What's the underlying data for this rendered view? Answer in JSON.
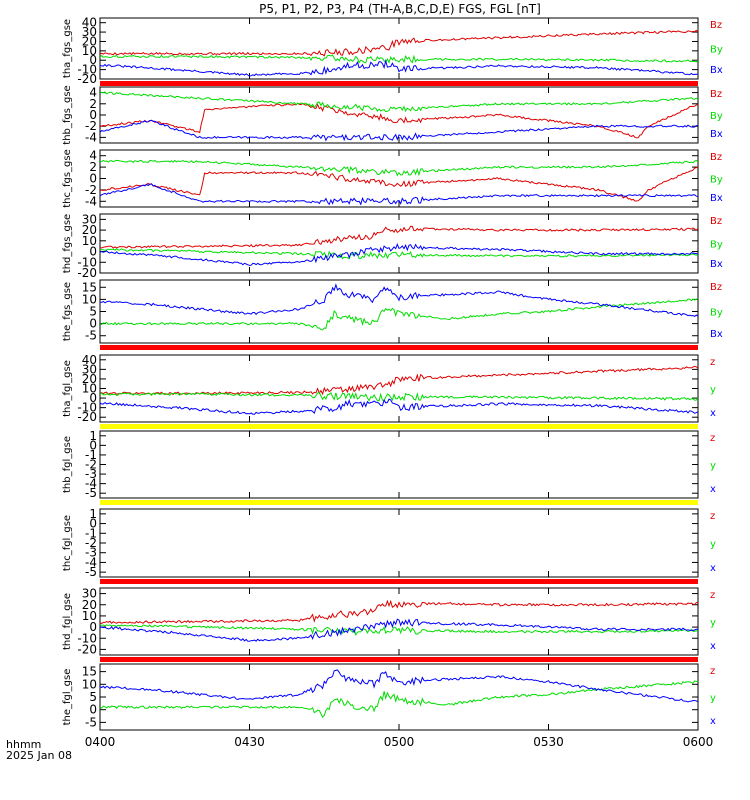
{
  "figure": {
    "title": "P5, P1, P2, P3, P4 (TH-A,B,C,D,E) FGS, FGL [nT]",
    "x_axis_label": "hhmm",
    "date_label": "2025 Jan 08"
  },
  "colors": {
    "x": "#0000ff",
    "y": "#00dd00",
    "z": "#dd0000",
    "red_bar": "#ff0000",
    "yellow_bar": "#ffff00"
  },
  "chart_data": [
    {
      "type": "line",
      "ylabel": "tha_fgs_gse",
      "ylim": [
        -20,
        45
      ],
      "yticks": [
        40,
        30,
        20,
        10,
        0,
        -10,
        -20
      ],
      "xlim": [
        "04:00",
        "06:00"
      ],
      "xticks": [
        "0400",
        "0430",
        "0500",
        "0530",
        "0600"
      ],
      "series": [
        {
          "name": "Bz",
          "component": "z",
          "x": [
            "04:00",
            "04:20",
            "04:40",
            "04:50",
            "04:55",
            "04:58",
            "04:59",
            "05:00",
            "05:20",
            "05:40",
            "06:00"
          ],
          "values": [
            7,
            7,
            7,
            9,
            12,
            14,
            18,
            20,
            24,
            28,
            31
          ]
        },
        {
          "name": "By",
          "component": "y",
          "x": [
            "04:00",
            "04:20",
            "04:40",
            "04:48",
            "04:55",
            "05:00",
            "05:20",
            "05:40",
            "06:00"
          ],
          "values": [
            4,
            4,
            3,
            2,
            0,
            1,
            1,
            0,
            -1
          ]
        },
        {
          "name": "Bx",
          "component": "x",
          "x": [
            "04:00",
            "04:15",
            "04:30",
            "04:40",
            "04:47",
            "04:50",
            "04:55",
            "04:58",
            "05:00",
            "05:20",
            "05:40",
            "06:00"
          ],
          "values": [
            -5,
            -10,
            -16,
            -14,
            -10,
            -6,
            -5,
            -4,
            -10,
            -6,
            -8,
            -15
          ]
        }
      ],
      "bar_below": "red"
    },
    {
      "type": "line",
      "ylabel": "thb_fgs_gse",
      "ylim": [
        -5,
        5
      ],
      "yticks": [
        4,
        2,
        0,
        -2,
        -4
      ],
      "xlim": [
        "04:00",
        "06:00"
      ],
      "xticks": [
        "0400",
        "0430",
        "0500",
        "0530",
        "0600"
      ],
      "series": [
        {
          "name": "Bz",
          "component": "z",
          "x": [
            "04:00",
            "04:10",
            "04:20",
            "04:21",
            "04:40",
            "05:00",
            "05:20",
            "05:40",
            "05:48",
            "05:50",
            "06:00"
          ],
          "values": [
            -2,
            -1,
            -3,
            1,
            2,
            -1,
            0,
            -2,
            -4,
            -2,
            2
          ]
        },
        {
          "name": "By",
          "component": "y",
          "x": [
            "04:00",
            "04:20",
            "04:40",
            "05:00",
            "05:20",
            "05:40",
            "06:00"
          ],
          "values": [
            4,
            3,
            2,
            1,
            2,
            2,
            3
          ]
        },
        {
          "name": "Bx",
          "component": "x",
          "x": [
            "04:00",
            "04:10",
            "04:20",
            "04:40",
            "05:00",
            "05:20",
            "05:40",
            "06:00"
          ],
          "values": [
            -3,
            -1,
            -4,
            -4,
            -4,
            -3,
            -2,
            -2
          ]
        }
      ]
    },
    {
      "type": "line",
      "ylabel": "thc_fgs_gse",
      "ylim": [
        -5,
        5
      ],
      "yticks": [
        4,
        2,
        0,
        -2,
        -4
      ],
      "xlim": [
        "04:00",
        "06:00"
      ],
      "xticks": [
        "0400",
        "0430",
        "0500",
        "0530",
        "0600"
      ],
      "series": [
        {
          "name": "Bz",
          "component": "z",
          "x": [
            "04:00",
            "04:10",
            "04:20",
            "04:21",
            "04:40",
            "05:00",
            "05:20",
            "05:40",
            "05:48",
            "05:50",
            "06:00"
          ],
          "values": [
            -2,
            -1,
            -3,
            1,
            1,
            -1,
            0,
            -2,
            -4,
            -2,
            2
          ]
        },
        {
          "name": "By",
          "component": "y",
          "x": [
            "04:00",
            "04:20",
            "04:40",
            "05:00",
            "05:20",
            "05:40",
            "06:00"
          ],
          "values": [
            3,
            3,
            2,
            1,
            2,
            2,
            3
          ]
        },
        {
          "name": "Bx",
          "component": "x",
          "x": [
            "04:00",
            "04:10",
            "04:20",
            "04:40",
            "05:00",
            "05:20",
            "05:40",
            "06:00"
          ],
          "values": [
            -3,
            -1,
            -4,
            -4,
            -4,
            -3,
            -3,
            -3
          ]
        }
      ]
    },
    {
      "type": "line",
      "ylabel": "thd_fgs_gse",
      "ylim": [
        -20,
        35
      ],
      "yticks": [
        30,
        20,
        10,
        0,
        -10,
        -20
      ],
      "xlim": [
        "04:00",
        "06:00"
      ],
      "xticks": [
        "0400",
        "0430",
        "0500",
        "0530",
        "0600"
      ],
      "series": [
        {
          "name": "Bz",
          "component": "z",
          "x": [
            "04:00",
            "04:20",
            "04:40",
            "04:45",
            "04:50",
            "04:55",
            "04:57",
            "05:00",
            "05:10",
            "05:20",
            "05:40",
            "06:00"
          ],
          "values": [
            4,
            5,
            6,
            10,
            12,
            15,
            20,
            21,
            21,
            20,
            20,
            21
          ]
        },
        {
          "name": "By",
          "component": "y",
          "x": [
            "04:00",
            "04:20",
            "04:40",
            "04:50",
            "05:00",
            "05:20",
            "05:40",
            "06:00"
          ],
          "values": [
            2,
            0,
            -2,
            -4,
            -3,
            -4,
            -4,
            -3
          ]
        },
        {
          "name": "Bx",
          "component": "x",
          "x": [
            "04:00",
            "04:15",
            "04:30",
            "04:40",
            "04:45",
            "04:50",
            "04:55",
            "05:00",
            "05:20",
            "05:40",
            "06:00"
          ],
          "values": [
            0,
            -5,
            -12,
            -10,
            -6,
            -3,
            2,
            4,
            2,
            -2,
            -2
          ]
        }
      ]
    },
    {
      "type": "line",
      "ylabel": "the_fgs_gse",
      "ylim": [
        -8,
        18
      ],
      "yticks": [
        15,
        10,
        5,
        0,
        -5
      ],
      "xlim": [
        "04:00",
        "06:00"
      ],
      "xticks": [
        "0400",
        "0430",
        "0500",
        "0530",
        "0600"
      ],
      "series": [
        {
          "name": "Bz",
          "component": "z",
          "x": [],
          "values": []
        },
        {
          "name": "By",
          "component": "y",
          "x": [
            "04:00",
            "04:10",
            "04:20",
            "04:30",
            "04:40",
            "04:45",
            "04:47",
            "04:50",
            "04:55",
            "04:57",
            "05:00",
            "05:10",
            "05:20",
            "05:30",
            "05:40",
            "06:00"
          ],
          "values": [
            0,
            0,
            0,
            0,
            0,
            -2,
            4,
            2,
            0,
            6,
            4,
            2,
            4,
            5,
            7,
            10
          ]
        },
        {
          "name": "Bx",
          "component": "x",
          "x": [
            "04:00",
            "04:10",
            "04:20",
            "04:30",
            "04:40",
            "04:45",
            "04:47",
            "04:50",
            "04:55",
            "04:57",
            "05:00",
            "05:10",
            "05:20",
            "05:30",
            "05:40",
            "06:00"
          ],
          "values": [
            9,
            8,
            6,
            4,
            6,
            10,
            15,
            12,
            10,
            14,
            11,
            12,
            13,
            10,
            8,
            3
          ]
        }
      ],
      "bar_below": "red"
    },
    {
      "type": "line",
      "ylabel": "tha_fgl_gse",
      "ylim": [
        -25,
        45
      ],
      "yticks": [
        40,
        30,
        20,
        10,
        0,
        -10,
        -20
      ],
      "xlim": [
        "04:00",
        "06:00"
      ],
      "xticks": [
        "0400",
        "0430",
        "0500",
        "0530",
        "0600"
      ],
      "series": [
        {
          "name": "z",
          "component": "z",
          "x": [
            "04:00",
            "04:20",
            "04:40",
            "04:50",
            "04:55",
            "04:58",
            "04:59",
            "05:00",
            "05:20",
            "05:40",
            "06:00"
          ],
          "values": [
            5,
            5,
            6,
            9,
            12,
            14,
            18,
            20,
            24,
            28,
            32
          ]
        },
        {
          "name": "y",
          "component": "y",
          "x": [
            "04:00",
            "04:20",
            "04:40",
            "04:48",
            "04:55",
            "05:00",
            "05:20",
            "05:40",
            "06:00"
          ],
          "values": [
            4,
            4,
            3,
            2,
            0,
            1,
            1,
            0,
            -1
          ]
        },
        {
          "name": "x",
          "component": "x",
          "x": [
            "04:00",
            "04:15",
            "04:30",
            "04:40",
            "04:47",
            "04:50",
            "04:55",
            "04:58",
            "05:00",
            "05:20",
            "05:40",
            "06:00"
          ],
          "values": [
            -5,
            -10,
            -16,
            -14,
            -10,
            -6,
            -5,
            -4,
            -10,
            -6,
            -8,
            -15
          ]
        }
      ],
      "bar_below": "yellow"
    },
    {
      "type": "line",
      "ylabel": "thb_fgl_gse",
      "ylim": [
        -5.5,
        1.5
      ],
      "yticks": [
        1,
        0,
        -1,
        -2,
        -3,
        -4,
        -5
      ],
      "xlim": [
        "04:00",
        "06:00"
      ],
      "xticks": [
        "0400",
        "0430",
        "0500",
        "0530",
        "0600"
      ],
      "series": [
        {
          "name": "z",
          "component": "z",
          "x": [],
          "values": []
        },
        {
          "name": "y",
          "component": "y",
          "x": [],
          "values": []
        },
        {
          "name": "x",
          "component": "x",
          "x": [],
          "values": []
        }
      ],
      "bar_below": "yellow"
    },
    {
      "type": "line",
      "ylabel": "thc_fgl_gse",
      "ylim": [
        -5.5,
        1.5
      ],
      "yticks": [
        1,
        0,
        -1,
        -2,
        -3,
        -4,
        -5
      ],
      "xlim": [
        "04:00",
        "06:00"
      ],
      "xticks": [
        "0400",
        "0430",
        "0500",
        "0530",
        "0600"
      ],
      "series": [
        {
          "name": "z",
          "component": "z",
          "x": [],
          "values": []
        },
        {
          "name": "y",
          "component": "y",
          "x": [],
          "values": []
        },
        {
          "name": "x",
          "component": "x",
          "x": [],
          "values": []
        }
      ],
      "bar_below": "red"
    },
    {
      "type": "line",
      "ylabel": "thd_fgl_gse",
      "ylim": [
        -25,
        35
      ],
      "yticks": [
        30,
        20,
        10,
        0,
        -10,
        -20
      ],
      "xlim": [
        "04:00",
        "06:00"
      ],
      "xticks": [
        "0400",
        "0430",
        "0500",
        "0530",
        "0600"
      ],
      "series": [
        {
          "name": "z",
          "component": "z",
          "x": [
            "04:00",
            "04:20",
            "04:40",
            "04:45",
            "04:50",
            "04:55",
            "04:57",
            "05:00",
            "05:10",
            "05:20",
            "05:40",
            "06:00"
          ],
          "values": [
            4,
            5,
            6,
            10,
            12,
            15,
            20,
            21,
            21,
            20,
            20,
            21
          ]
        },
        {
          "name": "y",
          "component": "y",
          "x": [
            "04:00",
            "04:20",
            "04:40",
            "04:50",
            "05:00",
            "05:20",
            "05:40",
            "06:00"
          ],
          "values": [
            2,
            0,
            -2,
            -4,
            -3,
            -4,
            -4,
            -3
          ]
        },
        {
          "name": "x",
          "component": "x",
          "x": [
            "04:00",
            "04:15",
            "04:30",
            "04:40",
            "04:45",
            "04:50",
            "04:55",
            "05:00",
            "05:20",
            "05:40",
            "06:00"
          ],
          "values": [
            0,
            -5,
            -12,
            -10,
            -6,
            -3,
            2,
            4,
            2,
            -2,
            -2
          ]
        }
      ],
      "bar_below": "red"
    },
    {
      "type": "line",
      "ylabel": "the_fgl_gse",
      "ylim": [
        -8,
        18
      ],
      "yticks": [
        15,
        10,
        5,
        0,
        -5
      ],
      "xlim": [
        "04:00",
        "06:00"
      ],
      "xticks": [
        "0400",
        "0430",
        "0500",
        "0530",
        "0600"
      ],
      "series": [
        {
          "name": "z",
          "component": "z",
          "x": [],
          "values": []
        },
        {
          "name": "y",
          "component": "y",
          "x": [
            "04:00",
            "04:10",
            "04:20",
            "04:30",
            "04:40",
            "04:45",
            "04:47",
            "04:50",
            "04:55",
            "04:57",
            "05:00",
            "05:10",
            "05:20",
            "05:30",
            "05:40",
            "06:00"
          ],
          "values": [
            1,
            1,
            1,
            1,
            1,
            -2,
            4,
            2,
            0,
            6,
            4,
            2,
            5,
            6,
            8,
            11
          ]
        },
        {
          "name": "x",
          "component": "x",
          "x": [
            "04:00",
            "04:10",
            "04:20",
            "04:30",
            "04:40",
            "04:45",
            "04:47",
            "04:50",
            "04:55",
            "04:57",
            "05:00",
            "05:10",
            "05:20",
            "05:30",
            "05:40",
            "06:00"
          ],
          "values": [
            9,
            8,
            6,
            4,
            6,
            10,
            15,
            12,
            10,
            14,
            11,
            12,
            13,
            11,
            8,
            3
          ]
        }
      ]
    }
  ]
}
